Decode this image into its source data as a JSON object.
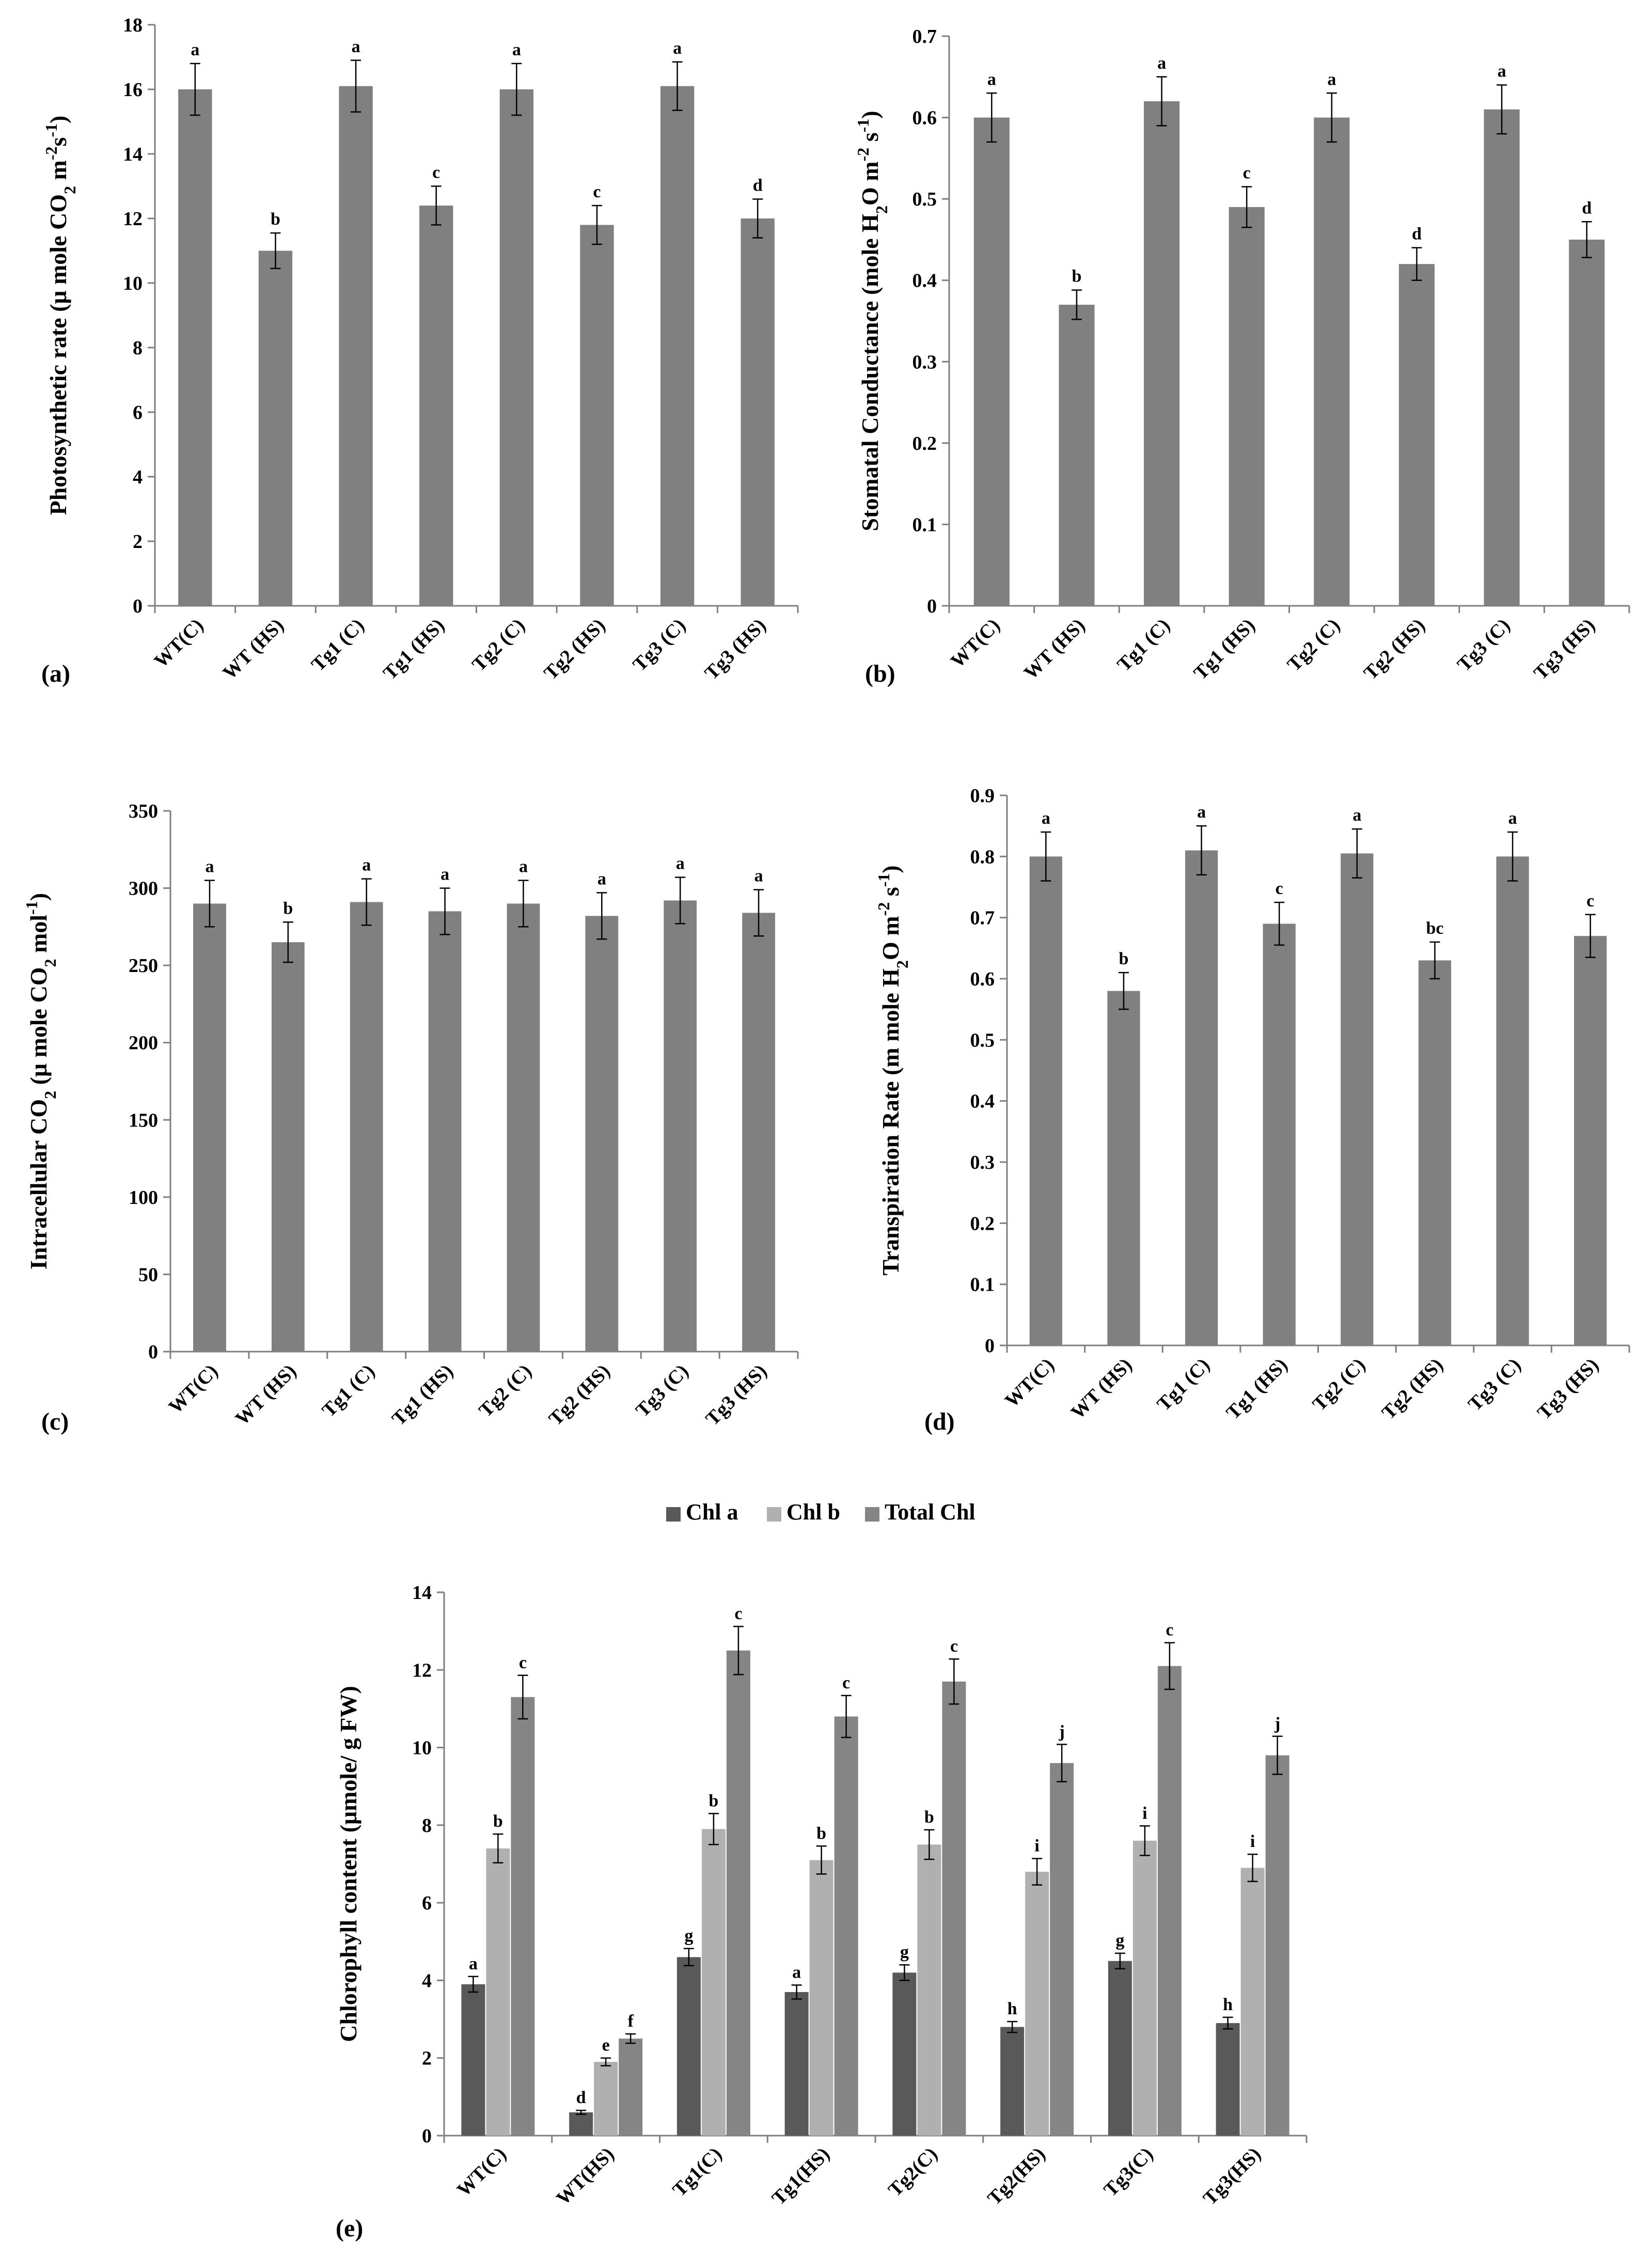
{
  "chart_data": [
    {
      "id": "a",
      "type": "bar",
      "panel_label": "(a)",
      "ylabel_parts": [
        {
          "t": "Photosynthetic rate (μ mole CO"
        },
        {
          "t": "2",
          "sub": true
        },
        {
          "t": " m"
        },
        {
          "t": "-2",
          "sup": true
        },
        {
          "t": "s"
        },
        {
          "t": "-1",
          "sup": true
        },
        {
          "t": ")"
        }
      ],
      "categories": [
        "WT(C)",
        "WT (HS)",
        "Tg1 (C)",
        "Tg1 (HS)",
        "Tg2 (C)",
        "Tg2 (HS)",
        "Tg3 (C)",
        "Tg3 (HS)"
      ],
      "values": [
        16.0,
        11.0,
        16.1,
        12.4,
        16.0,
        11.8,
        16.1,
        12.0
      ],
      "errors": [
        0.8,
        0.55,
        0.8,
        0.6,
        0.8,
        0.6,
        0.75,
        0.6
      ],
      "letters": [
        "a",
        "b",
        "a",
        "c",
        "a",
        "c",
        "a",
        "d"
      ],
      "ylim": [
        0,
        18
      ],
      "yticks": [
        0,
        2,
        4,
        6,
        8,
        10,
        12,
        14,
        16,
        18
      ],
      "ytick_labels": [
        "0",
        "2",
        "4",
        "6",
        "8",
        "10",
        "12",
        "14",
        "16",
        "18"
      ],
      "bar_color": "#808080"
    },
    {
      "id": "b",
      "type": "bar",
      "panel_label": "(b)",
      "ylabel_parts": [
        {
          "t": "Stomatal Conductance (mole H"
        },
        {
          "t": "2",
          "sub": true
        },
        {
          "t": "O m"
        },
        {
          "t": "-2",
          "sup": true
        },
        {
          "t": " s"
        },
        {
          "t": "-1",
          "sup": true
        },
        {
          "t": ")"
        }
      ],
      "categories": [
        "WT(C)",
        "WT (HS)",
        "Tg1 (C)",
        "Tg1 (HS)",
        "Tg2 (C)",
        "Tg2 (HS)",
        "Tg3 (C)",
        "Tg3 (HS)"
      ],
      "values": [
        0.6,
        0.37,
        0.62,
        0.49,
        0.6,
        0.42,
        0.61,
        0.45
      ],
      "errors": [
        0.03,
        0.018,
        0.03,
        0.025,
        0.03,
        0.02,
        0.03,
        0.022
      ],
      "letters": [
        "a",
        "b",
        "a",
        "c",
        "a",
        "d",
        "a",
        "d"
      ],
      "ylim": [
        0,
        0.7
      ],
      "yticks": [
        0,
        0.1,
        0.2,
        0.3,
        0.4,
        0.5,
        0.6,
        0.7
      ],
      "ytick_labels": [
        "0",
        "0.1",
        "0.2",
        "0.3",
        "0.4",
        "0.5",
        "0.6",
        "0.7"
      ],
      "bar_color": "#808080"
    },
    {
      "id": "c",
      "type": "bar",
      "panel_label": "(c)",
      "ylabel_parts": [
        {
          "t": "Intracellular CO"
        },
        {
          "t": "2",
          "sub": true
        },
        {
          "t": " (μ mole CO"
        },
        {
          "t": "2",
          "sub": true
        },
        {
          "t": " mol"
        },
        {
          "t": "-1",
          "sup": true
        },
        {
          "t": ")"
        }
      ],
      "categories": [
        "WT(C)",
        "WT (HS)",
        "Tg1 (C)",
        "Tg1 (HS)",
        "Tg2 (C)",
        "Tg2 (HS)",
        "Tg3 (C)",
        "Tg3 (HS)"
      ],
      "values": [
        290,
        265,
        291,
        285,
        290,
        282,
        292,
        284
      ],
      "errors": [
        15,
        13,
        15,
        15,
        15,
        15,
        15,
        15
      ],
      "letters": [
        "a",
        "b",
        "a",
        "a",
        "a",
        "a",
        "a",
        "a"
      ],
      "ylim": [
        0,
        350
      ],
      "yticks": [
        0,
        50,
        100,
        150,
        200,
        250,
        300,
        350
      ],
      "ytick_labels": [
        "0",
        "50",
        "100",
        "150",
        "200",
        "250",
        "300",
        "350"
      ],
      "bar_color": "#808080"
    },
    {
      "id": "d",
      "type": "bar",
      "panel_label": "(d)",
      "ylabel_parts": [
        {
          "t": "Transpiration Rate (m mole H"
        },
        {
          "t": "2",
          "sub": true
        },
        {
          "t": "O m"
        },
        {
          "t": "-2",
          "sup": true
        },
        {
          "t": " s"
        },
        {
          "t": "-1",
          "sup": true
        },
        {
          "t": ")"
        }
      ],
      "categories": [
        "WT(C)",
        "WT (HS)",
        "Tg1 (C)",
        "Tg1 (HS)",
        "Tg2 (C)",
        "Tg2 (HS)",
        "Tg3 (C)",
        "Tg3 (HS)"
      ],
      "values": [
        0.8,
        0.58,
        0.81,
        0.69,
        0.805,
        0.63,
        0.8,
        0.67
      ],
      "errors": [
        0.04,
        0.03,
        0.04,
        0.035,
        0.04,
        0.03,
        0.04,
        0.035
      ],
      "letters": [
        "a",
        "b",
        "a",
        "c",
        "a",
        "bc",
        "a",
        "c"
      ],
      "ylim": [
        0,
        0.9
      ],
      "yticks": [
        0,
        0.1,
        0.2,
        0.3,
        0.4,
        0.5,
        0.6,
        0.7,
        0.8,
        0.9
      ],
      "ytick_labels": [
        "0",
        "0.1",
        "0.2",
        "0.3",
        "0.4",
        "0.5",
        "0.6",
        "0.7",
        "0.8",
        "0.9"
      ],
      "bar_color": "#808080"
    },
    {
      "id": "e",
      "type": "bar",
      "panel_label": "(e)",
      "ylabel_parts": [
        {
          "t": "Chlorophyll content (μmole/ g FW)"
        }
      ],
      "categories": [
        "WT(C)",
        "WT(HS)",
        "Tg1(C)",
        "Tg1(HS)",
        "Tg2(C)",
        "Tg2(HS)",
        "Tg3(C)",
        "Tg3(HS)"
      ],
      "series": [
        {
          "name": "Chl a",
          "color": "#595959",
          "values": [
            3.9,
            0.6,
            4.6,
            3.7,
            4.2,
            2.8,
            4.5,
            2.9
          ],
          "errors": [
            0.2,
            0.05,
            0.22,
            0.18,
            0.2,
            0.14,
            0.2,
            0.15
          ],
          "letters": [
            "a",
            "d",
            "g",
            "a",
            "g",
            "h",
            "g",
            "h"
          ]
        },
        {
          "name": "Chl b",
          "color": "#b0b0b0",
          "values": [
            7.4,
            1.9,
            7.9,
            7.1,
            7.5,
            6.8,
            7.6,
            6.9
          ],
          "errors": [
            0.37,
            0.1,
            0.4,
            0.36,
            0.38,
            0.34,
            0.38,
            0.35
          ],
          "letters": [
            "b",
            "e",
            "b",
            "b",
            "b",
            "i",
            "i",
            "i"
          ]
        },
        {
          "name": "Total Chl",
          "color": "#858585",
          "values": [
            11.3,
            2.5,
            12.5,
            10.8,
            11.7,
            9.6,
            12.1,
            9.8
          ],
          "errors": [
            0.56,
            0.12,
            0.62,
            0.54,
            0.58,
            0.48,
            0.6,
            0.49
          ],
          "letters": [
            "c",
            "f",
            "c",
            "c",
            "c",
            "j",
            "c",
            "j"
          ]
        }
      ],
      "ylim": [
        0,
        14
      ],
      "yticks": [
        0,
        2,
        4,
        6,
        8,
        10,
        12,
        14
      ],
      "ytick_labels": [
        "0",
        "2",
        "4",
        "6",
        "8",
        "10",
        "12",
        "14"
      ],
      "legend": "top-center"
    }
  ]
}
